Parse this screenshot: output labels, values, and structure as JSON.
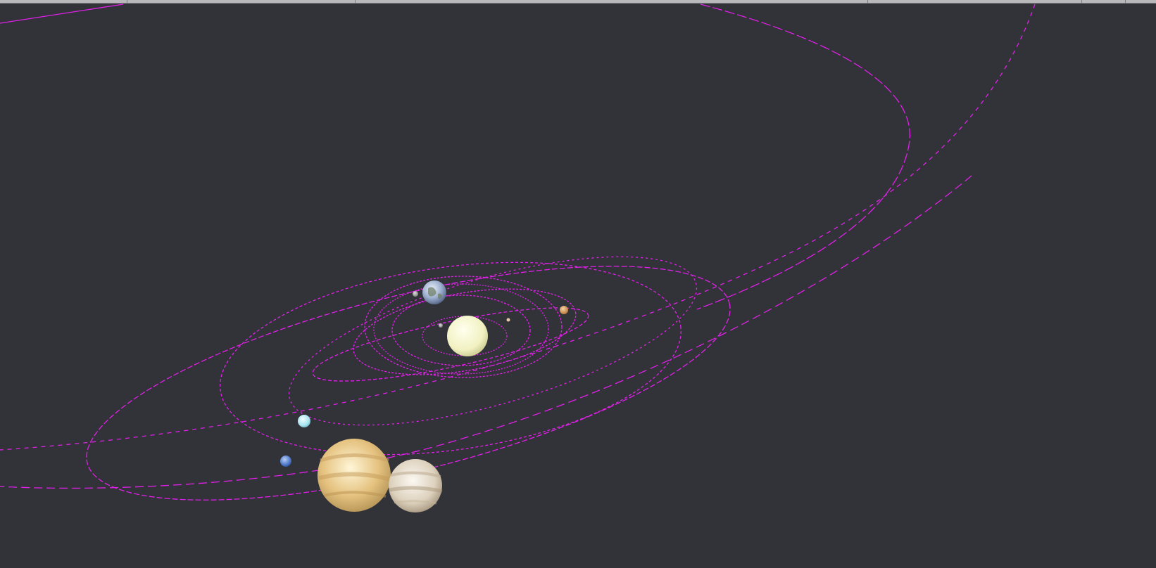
{
  "window": {
    "title": ""
  },
  "scene": {
    "background_color": "#323338",
    "orbit_color": "#e020e8",
    "bodies": [
      {
        "name": "sun",
        "icon": "sun-sphere",
        "color": "#f3f3c4"
      },
      {
        "name": "mercury",
        "icon": "planet-sphere",
        "color": "#bfbfbf"
      },
      {
        "name": "venus",
        "icon": "planet-sphere",
        "color": "#e8c9a8"
      },
      {
        "name": "earth",
        "icon": "planet-sphere",
        "color": "#a7b8d3"
      },
      {
        "name": "moon",
        "icon": "planet-sphere",
        "color": "#9a9a9a"
      },
      {
        "name": "mars",
        "icon": "planet-sphere",
        "color": "#d69a5a"
      },
      {
        "name": "jupiter",
        "icon": "planet-sphere",
        "color": "#e8c27a"
      },
      {
        "name": "saturn",
        "icon": "planet-sphere",
        "color": "#e3dcd0"
      },
      {
        "name": "uranus",
        "icon": "planet-sphere",
        "color": "#aee7f2"
      },
      {
        "name": "neptune",
        "icon": "planet-sphere",
        "color": "#4d78c9"
      }
    ]
  }
}
